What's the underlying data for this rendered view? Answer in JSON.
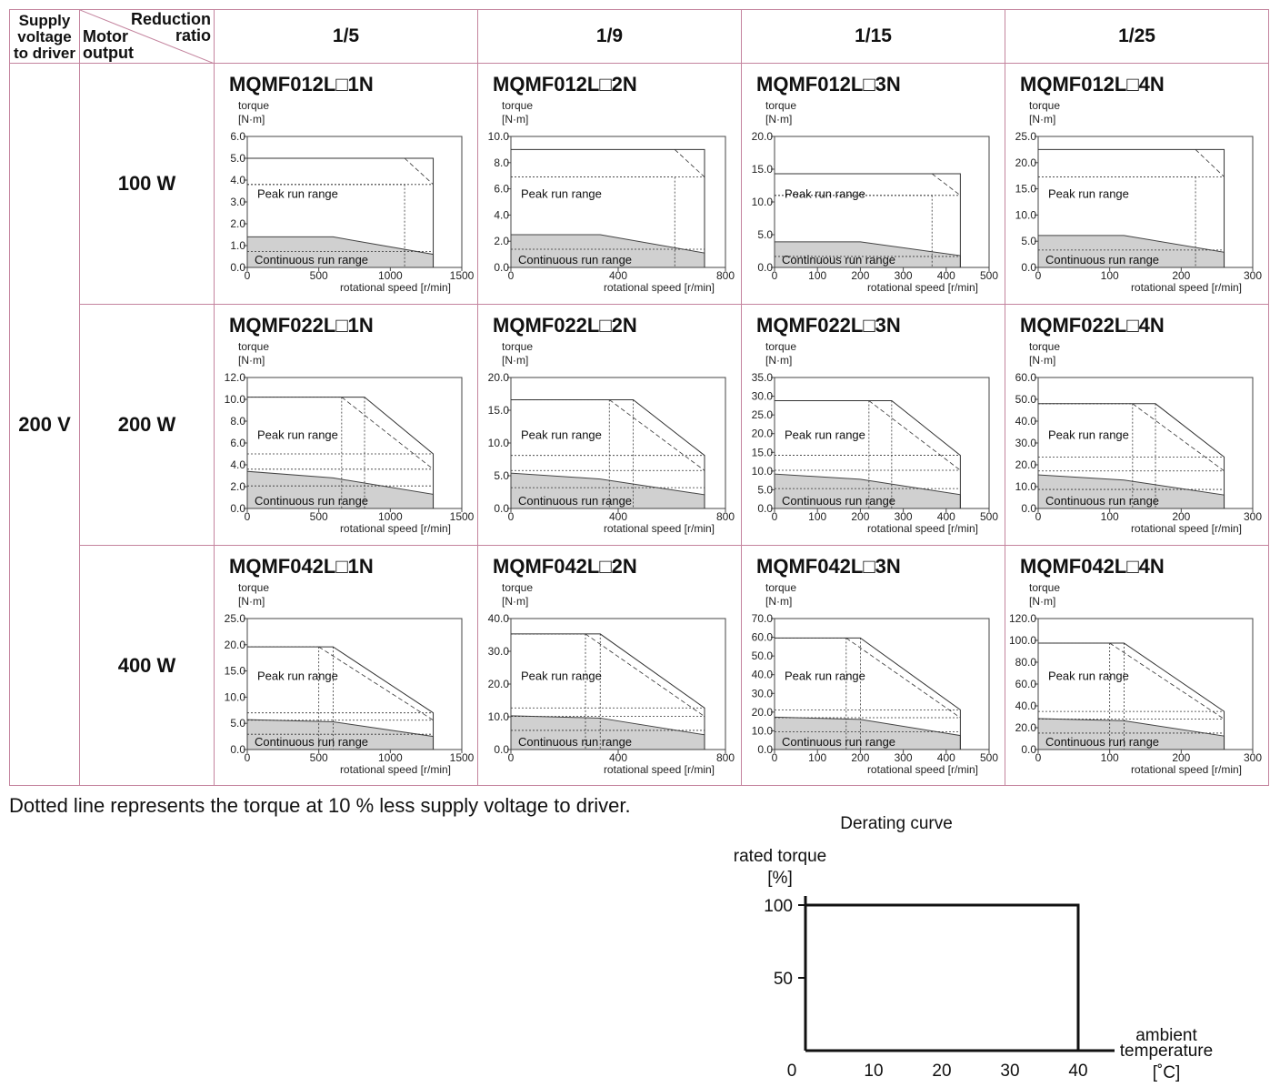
{
  "header": {
    "supply_voltage_label_1": "Supply",
    "supply_voltage_label_2": "voltage",
    "supply_voltage_label_3": "to driver",
    "reduction_label_1": "Reduction",
    "reduction_label_2": "ratio",
    "motor_output_label_1": "Motor",
    "motor_output_label_2": "output",
    "ratios": [
      "1/5",
      "1/9",
      "1/15",
      "1/25"
    ]
  },
  "voltage": "200 V",
  "outputs": [
    "100 W",
    "200 W",
    "400 W"
  ],
  "chart_labels": {
    "ylabel_1": "torque",
    "ylabel_2": "[N·m]",
    "xlabel": "rotational speed [r/min]",
    "peak": "Peak run range",
    "continuous": "Continuous run range"
  },
  "chart_data": [
    {
      "type": "area",
      "title": "MQMF012L□1N",
      "xlim": [
        0,
        1500
      ],
      "xticks": [
        "0",
        "500",
        "1000",
        "1500"
      ],
      "ylim": [
        0,
        6
      ],
      "yticks": [
        "0.0",
        "1.0",
        "2.0",
        "3.0",
        "4.0",
        "5.0",
        "6.0"
      ],
      "peak_run_range": {
        "x": [
          0,
          1100,
          1300
        ],
        "y": [
          5.0,
          5.0,
          5.0
        ],
        "reduced_voltage": {
          "x": [
            0,
            1100,
            1300
          ],
          "y": [
            3.8,
            5.0,
            3.8
          ]
        }
      },
      "continuous_run_range": {
        "x": [
          0,
          600,
          1300
        ],
        "y": [
          1.4,
          1.4,
          0.6
        ]
      }
    },
    {
      "type": "area",
      "title": "MQMF012L□2N",
      "xlim": [
        0,
        800
      ],
      "xticks": [
        "0",
        "400",
        "800"
      ],
      "ylim": [
        0,
        10
      ],
      "yticks": [
        "0.0",
        "2.0",
        "4.0",
        "6.0",
        "8.0",
        "10.0"
      ],
      "peak_run_range": {
        "x": [
          0,
          611,
          722
        ],
        "y": [
          9.0,
          9.0,
          9.0
        ],
        "reduced_voltage": {
          "x": [
            0,
            611,
            722
          ],
          "y": [
            6.9,
            9.0,
            6.9
          ]
        }
      },
      "continuous_run_range": {
        "x": [
          0,
          333,
          722
        ],
        "y": [
          2.5,
          2.5,
          1.1
        ]
      }
    },
    {
      "type": "area",
      "title": "MQMF012L□3N",
      "xlim": [
        0,
        500
      ],
      "xticks": [
        "0",
        "100",
        "200",
        "300",
        "400",
        "500"
      ],
      "ylim": [
        0,
        20
      ],
      "yticks": [
        "0.0",
        "5.0",
        "10.0",
        "15.0",
        "20.0"
      ],
      "peak_run_range": {
        "x": [
          0,
          367,
          433
        ],
        "y": [
          14.3,
          14.3,
          14.3
        ],
        "reduced_voltage": {
          "x": [
            0,
            367,
            433
          ],
          "y": [
            11.0,
            14.3,
            11.0
          ]
        }
      },
      "continuous_run_range": {
        "x": [
          0,
          200,
          433
        ],
        "y": [
          3.9,
          3.9,
          1.8
        ]
      }
    },
    {
      "type": "area",
      "title": "MQMF012L□4N",
      "xlim": [
        0,
        300
      ],
      "xticks": [
        "0",
        "100",
        "200",
        "300"
      ],
      "ylim": [
        0,
        25
      ],
      "yticks": [
        "0.0",
        "5.0",
        "10.0",
        "15.0",
        "20.0",
        "25.0"
      ],
      "peak_run_range": {
        "x": [
          0,
          220,
          260
        ],
        "y": [
          22.5,
          22.5,
          22.5
        ],
        "reduced_voltage": {
          "x": [
            0,
            220,
            260
          ],
          "y": [
            17.3,
            22.5,
            17.3
          ]
        }
      },
      "continuous_run_range": {
        "x": [
          0,
          120,
          260
        ],
        "y": [
          6.1,
          6.1,
          2.9
        ]
      }
    },
    {
      "type": "area",
      "title": "MQMF022L□1N",
      "xlim": [
        0,
        1500
      ],
      "xticks": [
        "0",
        "500",
        "1000",
        "1500"
      ],
      "ylim": [
        0,
        12
      ],
      "yticks": [
        "0.0",
        "2.0",
        "4.0",
        "6.0",
        "8.0",
        "10.0",
        "12.0"
      ],
      "peak_run_range": {
        "x": [
          0,
          820,
          1300
        ],
        "y": [
          10.2,
          10.2,
          5.0
        ],
        "reduced_voltage": {
          "x": [
            0,
            660,
            1300
          ],
          "y": [
            10.2,
            10.2,
            3.6
          ]
        }
      },
      "continuous_run_range": {
        "x": [
          0,
          600,
          1300
        ],
        "y": [
          3.4,
          2.8,
          1.3
        ]
      }
    },
    {
      "type": "area",
      "title": "MQMF022L□2N",
      "xlim": [
        0,
        800
      ],
      "xticks": [
        "0",
        "400",
        "800"
      ],
      "ylim": [
        0,
        20
      ],
      "yticks": [
        "0.0",
        "5.0",
        "10.0",
        "15.0",
        "20.0"
      ],
      "peak_run_range": {
        "x": [
          0,
          456,
          722
        ],
        "y": [
          16.6,
          16.6,
          8.1
        ],
        "reduced_voltage": {
          "x": [
            0,
            367,
            722
          ],
          "y": [
            16.6,
            16.6,
            5.8
          ]
        }
      },
      "continuous_run_range": {
        "x": [
          0,
          333,
          722
        ],
        "y": [
          5.4,
          4.5,
          2.1
        ]
      }
    },
    {
      "type": "area",
      "title": "MQMF022L□3N",
      "xlim": [
        0,
        500
      ],
      "xticks": [
        "0",
        "100",
        "200",
        "300",
        "400",
        "500"
      ],
      "ylim": [
        0,
        35
      ],
      "yticks": [
        "0.0",
        "5.0",
        "10.0",
        "15.0",
        "20.0",
        "25.0",
        "30.0",
        "35.0"
      ],
      "peak_run_range": {
        "x": [
          0,
          273,
          433
        ],
        "y": [
          28.8,
          28.8,
          14.2
        ],
        "reduced_voltage": {
          "x": [
            0,
            220,
            433
          ],
          "y": [
            28.8,
            28.8,
            10.2
          ]
        }
      },
      "continuous_run_range": {
        "x": [
          0,
          200,
          433
        ],
        "y": [
          9.2,
          7.8,
          3.7
        ]
      }
    },
    {
      "type": "area",
      "title": "MQMF022L□4N",
      "xlim": [
        0,
        300
      ],
      "xticks": [
        "0",
        "100",
        "200",
        "300"
      ],
      "ylim": [
        0,
        60
      ],
      "yticks": [
        "0.0",
        "10.0",
        "20.0",
        "30.0",
        "40.0",
        "50.0",
        "60.0"
      ],
      "peak_run_range": {
        "x": [
          0,
          164,
          260
        ],
        "y": [
          48.0,
          48.0,
          23.6
        ],
        "reduced_voltage": {
          "x": [
            0,
            132,
            260
          ],
          "y": [
            48.0,
            48.0,
            17.2
          ]
        }
      },
      "continuous_run_range": {
        "x": [
          0,
          120,
          260
        ],
        "y": [
          15.4,
          13.0,
          6.2
        ]
      }
    },
    {
      "type": "area",
      "title": "MQMF042L□1N",
      "xlim": [
        0,
        1500
      ],
      "xticks": [
        "0",
        "500",
        "1000",
        "1500"
      ],
      "ylim": [
        0,
        25
      ],
      "yticks": [
        "0.0",
        "5.0",
        "10.0",
        "15.0",
        "20.0",
        "25.0"
      ],
      "peak_run_range": {
        "x": [
          0,
          600,
          1300
        ],
        "y": [
          19.6,
          19.6,
          7.0
        ],
        "reduced_voltage": {
          "x": [
            0,
            500,
            1300
          ],
          "y": [
            19.6,
            19.6,
            5.6
          ]
        }
      },
      "continuous_run_range": {
        "x": [
          0,
          600,
          1300
        ],
        "y": [
          5.7,
          5.3,
          2.5
        ]
      }
    },
    {
      "type": "area",
      "title": "MQMF042L□2N",
      "xlim": [
        0,
        800
      ],
      "xticks": [
        "0",
        "400",
        "800"
      ],
      "ylim": [
        0,
        40
      ],
      "yticks": [
        "0.0",
        "10.0",
        "20.0",
        "30.0",
        "40.0"
      ],
      "peak_run_range": {
        "x": [
          0,
          333,
          722
        ],
        "y": [
          35.3,
          35.3,
          12.7
        ],
        "reduced_voltage": {
          "x": [
            0,
            278,
            722
          ],
          "y": [
            35.3,
            35.3,
            10.1
          ]
        }
      },
      "continuous_run_range": {
        "x": [
          0,
          333,
          722
        ],
        "y": [
          10.3,
          9.6,
          4.5
        ]
      }
    },
    {
      "type": "area",
      "title": "MQMF042L□3N",
      "xlim": [
        0,
        500
      ],
      "xticks": [
        "0",
        "100",
        "200",
        "300",
        "400",
        "500"
      ],
      "ylim": [
        0,
        70
      ],
      "yticks": [
        "0.0",
        "10.0",
        "20.0",
        "30.0",
        "40.0",
        "50.0",
        "60.0",
        "70.0"
      ],
      "peak_run_range": {
        "x": [
          0,
          200,
          433
        ],
        "y": [
          59.6,
          59.6,
          21.2
        ],
        "reduced_voltage": {
          "x": [
            0,
            167,
            433
          ],
          "y": [
            59.6,
            59.6,
            17.0
          ]
        }
      },
      "continuous_run_range": {
        "x": [
          0,
          200,
          433
        ],
        "y": [
          17.3,
          16.1,
          7.5
        ]
      }
    },
    {
      "type": "area",
      "title": "MQMF042L□4N",
      "xlim": [
        0,
        300
      ],
      "xticks": [
        "0",
        "100",
        "200",
        "300"
      ],
      "ylim": [
        0,
        120
      ],
      "yticks": [
        "0.0",
        "20.0",
        "40.0",
        "60.0",
        "80.0",
        "100.0",
        "120.0"
      ],
      "peak_run_range": {
        "x": [
          0,
          120,
          260
        ],
        "y": [
          97.5,
          97.5,
          34.9
        ],
        "reduced_voltage": {
          "x": [
            0,
            100,
            260
          ],
          "y": [
            97.5,
            97.5,
            27.9
          ]
        }
      },
      "continuous_run_range": {
        "x": [
          0,
          120,
          260
        ],
        "y": [
          28.4,
          26.4,
          12.4
        ]
      }
    },
    {
      "type": "line",
      "title": "Derating curve",
      "ylabel_1": "rated torque",
      "ylabel_2": "[%]",
      "xlabel_1": "ambient",
      "xlabel_2": "temperature",
      "xlabel_3": "[˚C]",
      "xlim": [
        0,
        40
      ],
      "xticks": [
        "0",
        "10",
        "20",
        "30",
        "40"
      ],
      "ylim": [
        0,
        100
      ],
      "yticks": [
        "50",
        "100"
      ],
      "x": [
        0,
        40,
        40
      ],
      "y": [
        100,
        100,
        0
      ]
    }
  ],
  "footnote": "Dotted line represents the torque at 10 % less supply voltage to driver."
}
